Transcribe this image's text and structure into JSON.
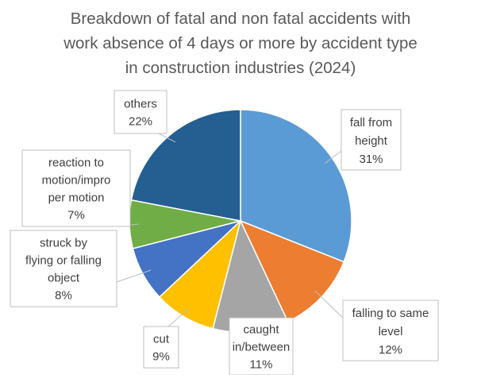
{
  "chart_data": {
    "type": "pie",
    "title_lines": [
      "Breakdown of fatal and non fatal accidents with",
      "work absence of 4 days or more by accident type",
      "in construction industries (2024)"
    ],
    "slices": [
      {
        "label_lines": [
          "fall from",
          "height"
        ],
        "value": 31,
        "value_label": "31%",
        "color": "#5b9bd5"
      },
      {
        "label_lines": [
          "falling to same",
          "level"
        ],
        "value": 12,
        "value_label": "12%",
        "color": "#ed7d31"
      },
      {
        "label_lines": [
          "caught",
          "in/between"
        ],
        "value": 11,
        "value_label": "11%",
        "color": "#a5a5a5"
      },
      {
        "label_lines": [
          "cut"
        ],
        "value": 9,
        "value_label": "9%",
        "color": "#ffc000"
      },
      {
        "label_lines": [
          "struck by",
          "flying or falling",
          "object"
        ],
        "value": 8,
        "value_label": "8%",
        "color": "#4472c4"
      },
      {
        "label_lines": [
          "reaction to",
          "motion/impro",
          "per motion"
        ],
        "value": 7,
        "value_label": "7%",
        "color": "#70ad47"
      },
      {
        "label_lines": [
          "others"
        ],
        "value": 22,
        "value_label": "22%",
        "color": "#255e91"
      }
    ],
    "start_angle_deg": 0,
    "direction": "clockwise",
    "legend": "none"
  }
}
